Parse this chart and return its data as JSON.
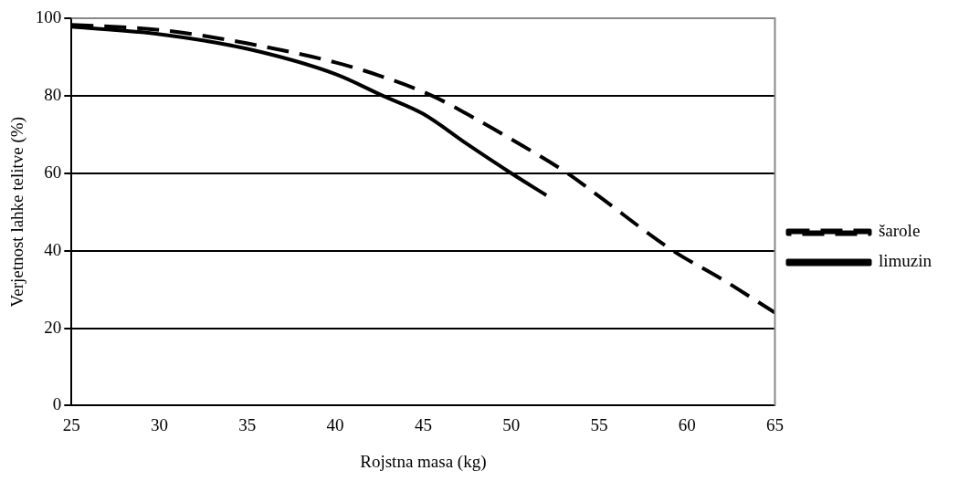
{
  "chart_data": {
    "type": "line",
    "xlabel": "Rojstna masa (kg)",
    "ylabel": "Verjetnost lahke telitve (%)",
    "series": [
      {
        "name": "šarole",
        "color": "#000000",
        "line_style": "dashed",
        "x": [
          25,
          30,
          35,
          40,
          42.5,
          45.5,
          48,
          50,
          53.2,
          55,
          59.2,
          62,
          65
        ],
        "values": [
          98.3,
          97,
          93.5,
          88.6,
          85.2,
          80,
          74,
          68.8,
          60,
          54,
          40,
          32.6,
          24
        ]
      },
      {
        "name": "limuzin",
        "color": "#000000",
        "line_style": "solid",
        "x": [
          25,
          30,
          35,
          40,
          42.7,
          45,
          47.5,
          50,
          52
        ],
        "values": [
          97.8,
          95.9,
          92.1,
          85.6,
          80,
          75.3,
          67.5,
          60,
          54.3
        ]
      }
    ],
    "xlim": [
      25,
      65
    ],
    "xticks": [
      25,
      30,
      35,
      40,
      45,
      50,
      55,
      60,
      65
    ],
    "ylim": [
      0,
      100
    ],
    "yticks": [
      0,
      20,
      40,
      60,
      80,
      100
    ],
    "grid": "y",
    "legend": "right",
    "marker": "none"
  }
}
